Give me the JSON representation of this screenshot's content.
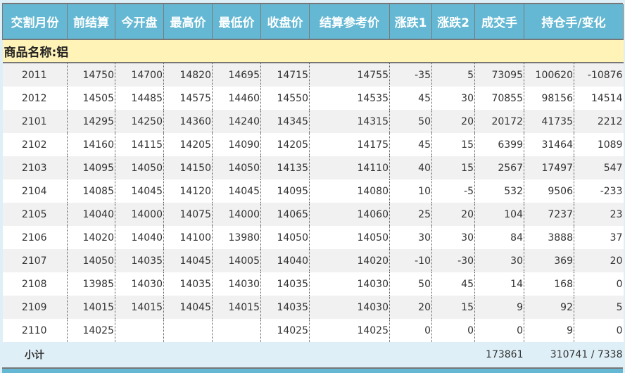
{
  "headers": [
    "交割月份",
    "前结算",
    "今开盘",
    "最高价",
    "最低价",
    "收盘价",
    "结算参考价",
    "涨跌1",
    "涨跌2",
    "成交手",
    "持仓手/变化"
  ],
  "product_label": "商品名称:铝",
  "rows": [
    [
      "2011",
      "14750",
      "14700",
      "14820",
      "14695",
      "14715",
      "14755",
      "-35",
      "5",
      "73095",
      "100620",
      "-10876"
    ],
    [
      "2012",
      "14505",
      "14485",
      "14575",
      "14460",
      "14550",
      "14535",
      "45",
      "30",
      "70855",
      "98156",
      "14514"
    ],
    [
      "2101",
      "14295",
      "14250",
      "14360",
      "14240",
      "14345",
      "14315",
      "50",
      "20",
      "20172",
      "41735",
      "2212"
    ],
    [
      "2102",
      "14160",
      "14115",
      "14205",
      "14090",
      "14205",
      "14175",
      "45",
      "15",
      "6399",
      "31464",
      "1089"
    ],
    [
      "2103",
      "14095",
      "14050",
      "14150",
      "14050",
      "14135",
      "14110",
      "40",
      "15",
      "2567",
      "17497",
      "547"
    ],
    [
      "2104",
      "14085",
      "14045",
      "14120",
      "14045",
      "14095",
      "14080",
      "10",
      "-5",
      "532",
      "9506",
      "-233"
    ],
    [
      "2105",
      "14040",
      "14000",
      "14075",
      "14000",
      "14065",
      "14060",
      "25",
      "20",
      "104",
      "7237",
      "23"
    ],
    [
      "2106",
      "14020",
      "14040",
      "14100",
      "13980",
      "14050",
      "14050",
      "30",
      "30",
      "84",
      "3888",
      "37"
    ],
    [
      "2107",
      "14050",
      "14035",
      "14045",
      "14005",
      "14040",
      "14020",
      "-10",
      "-30",
      "30",
      "369",
      "20"
    ],
    [
      "2108",
      "13985",
      "14030",
      "14035",
      "14030",
      "14035",
      "14030",
      "50",
      "45",
      "14",
      "168",
      "0"
    ],
    [
      "2109",
      "14015",
      "14015",
      "14045",
      "14015",
      "14035",
      "14030",
      "20",
      "15",
      "9",
      "92",
      "5"
    ],
    [
      "2110",
      "14025",
      "",
      "",
      "",
      "14025",
      "14025",
      "0",
      "0",
      "0",
      "9",
      "0"
    ]
  ],
  "subtotal": {
    "label": "小计",
    "volume": "173861",
    "open_interest": "310741 / 7338"
  }
}
